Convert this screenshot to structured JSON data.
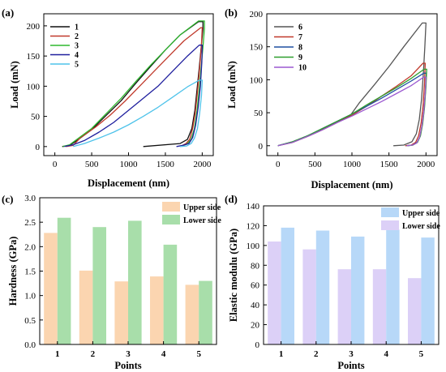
{
  "chart_data": [
    {
      "id": "a",
      "type": "line",
      "panel_label": "(a)",
      "xlabel": "Displacement (nm)",
      "ylabel": "Load (mN)",
      "xlim": [
        -150,
        2150
      ],
      "ylim": [
        -15,
        220
      ],
      "xticks": [
        0,
        500,
        1000,
        1500,
        2000
      ],
      "yticks": [
        0,
        50,
        100,
        150,
        200
      ],
      "grid": false,
      "legend_position": "top-left",
      "series": [
        {
          "name": "1",
          "color": "#111111",
          "x": [
            100,
            200,
            300,
            500,
            700,
            900,
            1100,
            1300,
            1500,
            1700,
            1950,
            2010,
            2010,
            1990,
            1960,
            1930,
            1900,
            1860,
            1800,
            1700,
            1200
          ],
          "y": [
            0,
            2,
            10,
            28,
            52,
            76,
            105,
            133,
            160,
            185,
            207,
            207,
            195,
            170,
            130,
            95,
            60,
            30,
            12,
            5,
            0
          ]
        },
        {
          "name": "2",
          "color": "#c0392b",
          "x": [
            150,
            250,
            350,
            550,
            750,
            950,
            1150,
            1350,
            1550,
            1750,
            1980,
            2000,
            1990,
            1965,
            1935,
            1905,
            1870,
            1830,
            1780,
            1700
          ],
          "y": [
            0,
            2,
            15,
            32,
            52,
            75,
            100,
            125,
            150,
            175,
            197,
            197,
            170,
            130,
            90,
            55,
            30,
            12,
            5,
            0
          ]
        },
        {
          "name": "3",
          "color": "#2eb82e",
          "x": [
            110,
            200,
            300,
            500,
            700,
            900,
            1100,
            1300,
            1500,
            1700,
            1950,
            2030,
            2030,
            2010,
            1985,
            1960,
            1930,
            1895,
            1850,
            1790,
            1700
          ],
          "y": [
            0,
            3,
            12,
            30,
            55,
            80,
            108,
            135,
            160,
            185,
            208,
            208,
            195,
            165,
            130,
            95,
            60,
            30,
            12,
            4,
            0
          ]
        },
        {
          "name": "4",
          "color": "#1f1f9e",
          "x": [
            130,
            250,
            400,
            600,
            800,
            1000,
            1200,
            1400,
            1600,
            1800,
            1960,
            2000,
            1995,
            1975,
            1945,
            1910,
            1870,
            1820,
            1740,
            1650
          ],
          "y": [
            0,
            3,
            10,
            24,
            40,
            60,
            80,
            100,
            125,
            150,
            168,
            168,
            140,
            100,
            65,
            35,
            15,
            5,
            2,
            0
          ]
        },
        {
          "name": "5",
          "color": "#4fc3ea",
          "x": [
            250,
            400,
            600,
            800,
            1000,
            1200,
            1400,
            1600,
            1800,
            1960,
            2000,
            1990,
            1965,
            1935,
            1895,
            1850,
            1790,
            1700
          ],
          "y": [
            0,
            5,
            14,
            24,
            36,
            50,
            65,
            82,
            99,
            110,
            110,
            85,
            55,
            30,
            14,
            5,
            1,
            0
          ]
        }
      ]
    },
    {
      "id": "b",
      "type": "line",
      "panel_label": "(b)",
      "xlabel": "Displacement (nm)",
      "ylabel": "Load (mN)",
      "xlim": [
        -150,
        2150
      ],
      "ylim": [
        -15,
        200
      ],
      "xticks": [
        0,
        500,
        1000,
        1500,
        2000
      ],
      "yticks": [
        0,
        50,
        100,
        150,
        200
      ],
      "grid": false,
      "legend_position": "top-left",
      "series": [
        {
          "name": "6",
          "color": "#555555",
          "x": [
            0,
            200,
            400,
            600,
            800,
            980,
            1100,
            1300,
            1500,
            1700,
            1950,
            2000,
            1985,
            1965,
            1940,
            1910,
            1870,
            1810,
            1700,
            1560
          ],
          "y": [
            0,
            6,
            15,
            25,
            36,
            46,
            65,
            92,
            120,
            150,
            186,
            186,
            150,
            110,
            70,
            40,
            18,
            6,
            1,
            0
          ]
        },
        {
          "name": "7",
          "color": "#c0392b",
          "x": [
            0,
            200,
            400,
            600,
            800,
            1000,
            1200,
            1400,
            1600,
            1800,
            1960,
            1990,
            1980,
            1960,
            1935,
            1900,
            1860,
            1800,
            1720
          ],
          "y": [
            0,
            5,
            14,
            24,
            35,
            46,
            60,
            75,
            90,
            106,
            125,
            125,
            95,
            60,
            35,
            15,
            5,
            1,
            0
          ]
        },
        {
          "name": "8",
          "color": "#1f4fa0",
          "x": [
            0,
            200,
            400,
            600,
            800,
            1000,
            1200,
            1400,
            1600,
            1800,
            1970,
            2005,
            1995,
            1975,
            1950,
            1920,
            1880,
            1820,
            1740
          ],
          "y": [
            0,
            6,
            15,
            26,
            37,
            48,
            60,
            72,
            85,
            98,
            110,
            110,
            85,
            55,
            32,
            14,
            5,
            1,
            0
          ]
        },
        {
          "name": "9",
          "color": "#2e9e2e",
          "x": [
            0,
            200,
            400,
            600,
            800,
            1000,
            1200,
            1400,
            1600,
            1800,
            1975,
            2010,
            2000,
            1980,
            1955,
            1925,
            1885,
            1825,
            1750
          ],
          "y": [
            0,
            6,
            15,
            26,
            37,
            48,
            62,
            75,
            88,
            102,
            116,
            116,
            90,
            58,
            33,
            15,
            5,
            1,
            0
          ]
        },
        {
          "name": "10",
          "color": "#9b59d0",
          "x": [
            0,
            200,
            400,
            600,
            800,
            1000,
            1200,
            1400,
            1600,
            1800,
            1970,
            2000,
            1990,
            1970,
            1945,
            1915,
            1875,
            1815,
            1740
          ],
          "y": [
            0,
            5,
            14,
            24,
            35,
            45,
            56,
            67,
            79,
            91,
            104,
            104,
            80,
            52,
            30,
            13,
            4,
            1,
            0
          ]
        }
      ]
    },
    {
      "id": "c",
      "type": "bar",
      "panel_label": "(c)",
      "xlabel": "Points",
      "ylabel": "Hardness (GPa)",
      "categories": [
        "1",
        "2",
        "3",
        "4",
        "5"
      ],
      "ylim": [
        0,
        3.0
      ],
      "yticks": [
        "0.0",
        "0.5",
        "1.0",
        "1.5",
        "2.0",
        "2.5",
        "3.0"
      ],
      "grid": false,
      "legend_position": "top-right",
      "series": [
        {
          "name": "Upper side",
          "color": "#fbd5b0",
          "values": [
            2.28,
            1.51,
            1.29,
            1.39,
            1.22
          ]
        },
        {
          "name": "Lower side",
          "color": "#a8deaa",
          "values": [
            2.59,
            2.4,
            2.53,
            2.04,
            1.3
          ]
        }
      ]
    },
    {
      "id": "d",
      "type": "bar",
      "panel_label": "(d)",
      "xlabel": "Points",
      "ylabel": "Elastic modulu (GPa)",
      "categories": [
        "1",
        "2",
        "3",
        "4",
        "5"
      ],
      "ylim": [
        0,
        140
      ],
      "yticks": [
        "0",
        "20",
        "40",
        "60",
        "80",
        "100",
        "120",
        "140"
      ],
      "grid": false,
      "legend_position": "top-right",
      "series": [
        {
          "name": "Lower side",
          "color": "#dcd0f7",
          "values": [
            104,
            96,
            76,
            76,
            67
          ]
        },
        {
          "name": "Upper side",
          "color": "#b7d8f8",
          "values": [
            118,
            115,
            109,
            116,
            108
          ]
        }
      ],
      "legend_order": [
        "Upper side",
        "Lower side"
      ]
    }
  ]
}
